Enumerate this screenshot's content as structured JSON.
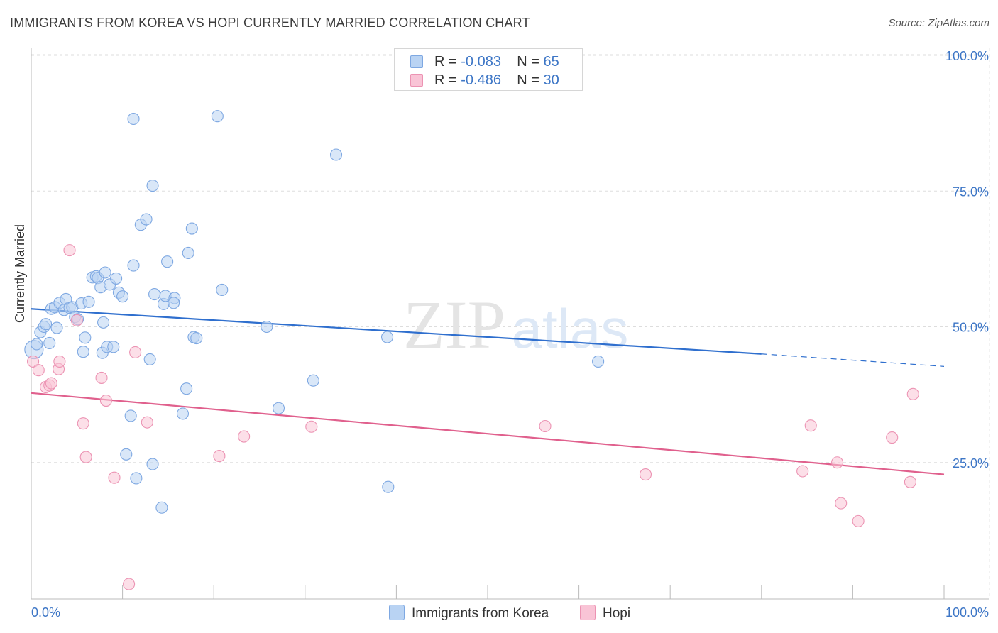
{
  "title": "IMMIGRANTS FROM KOREA VS HOPI CURRENTLY MARRIED CORRELATION CHART",
  "source": "Source: ZipAtlas.com",
  "watermark": {
    "zip": "ZIP",
    "atlas": "atlas"
  },
  "legend": {
    "r_label": "R =",
    "n_label": "N =",
    "series": [
      {
        "name": "Immigrants from Korea",
        "r": "-0.083",
        "n": "65",
        "fill": "#b9d3f3",
        "stroke": "#7ea8e2"
      },
      {
        "name": "Hopi",
        "r": "-0.486",
        "n": "30",
        "fill": "#f9c4d6",
        "stroke": "#ec93b3"
      }
    ]
  },
  "colors": {
    "blue_line": "#2f6fce",
    "pink_line": "#e0608d",
    "axis_text": "#3d76c6",
    "grid": "#dddddd"
  },
  "chart_data": {
    "type": "scatter",
    "title": "IMMIGRANTS FROM KOREA VS HOPI CURRENTLY MARRIED CORRELATION CHART",
    "xlabel": "",
    "ylabel": "Currently Married",
    "xlim": [
      0,
      100
    ],
    "ylim": [
      0,
      102
    ],
    "x_tick_labels": [
      "0.0%",
      "100.0%"
    ],
    "y_ticks": [
      25,
      50,
      75,
      100
    ],
    "y_tick_labels": [
      "25.0%",
      "50.0%",
      "75.0%",
      "100.0%"
    ],
    "legend_position": "top-center",
    "series": [
      {
        "name": "Immigrants from Korea",
        "points": [
          [
            0.3,
            45.8
          ],
          [
            0.6,
            46.8
          ],
          [
            1.0,
            49.0
          ],
          [
            1.4,
            50.0
          ],
          [
            1.6,
            50.5
          ],
          [
            2.0,
            47.0
          ],
          [
            2.2,
            53.3
          ],
          [
            2.6,
            53.6
          ],
          [
            2.8,
            49.8
          ],
          [
            3.1,
            54.4
          ],
          [
            3.6,
            53.1
          ],
          [
            3.8,
            55.1
          ],
          [
            4.2,
            53.5
          ],
          [
            4.5,
            53.6
          ],
          [
            4.8,
            51.8
          ],
          [
            5.1,
            51.4
          ],
          [
            5.5,
            54.3
          ],
          [
            5.7,
            45.4
          ],
          [
            5.9,
            48.0
          ],
          [
            6.3,
            54.6
          ],
          [
            6.7,
            59.1
          ],
          [
            7.1,
            59.3
          ],
          [
            7.3,
            59.0
          ],
          [
            7.6,
            57.3
          ],
          [
            7.8,
            45.2
          ],
          [
            7.9,
            50.8
          ],
          [
            8.1,
            60.0
          ],
          [
            8.3,
            46.3
          ],
          [
            8.6,
            57.8
          ],
          [
            9.0,
            46.3
          ],
          [
            9.3,
            58.9
          ],
          [
            9.6,
            56.3
          ],
          [
            10.0,
            55.6
          ],
          [
            10.4,
            26.5
          ],
          [
            11.2,
            88.3
          ],
          [
            11.5,
            22.1
          ],
          [
            11.2,
            61.3
          ],
          [
            10.9,
            33.6
          ],
          [
            12.0,
            68.8
          ],
          [
            13.3,
            76.0
          ],
          [
            12.6,
            69.8
          ],
          [
            13.0,
            44.0
          ],
          [
            13.5,
            56.0
          ],
          [
            14.5,
            54.2
          ],
          [
            14.7,
            55.7
          ],
          [
            15.7,
            55.3
          ],
          [
            15.6,
            54.4
          ],
          [
            14.9,
            62.0
          ],
          [
            14.3,
            16.7
          ],
          [
            13.3,
            24.7
          ],
          [
            16.6,
            34.0
          ],
          [
            17.0,
            38.6
          ],
          [
            17.2,
            63.6
          ],
          [
            17.6,
            68.1
          ],
          [
            17.8,
            48.1
          ],
          [
            18.1,
            47.9
          ],
          [
            20.4,
            88.8
          ],
          [
            20.9,
            56.8
          ],
          [
            25.8,
            50.0
          ],
          [
            27.1,
            35.0
          ],
          [
            30.9,
            40.1
          ],
          [
            33.4,
            81.7
          ],
          [
            39.0,
            48.1
          ],
          [
            39.1,
            20.5
          ],
          [
            62.1,
            43.6
          ]
        ]
      },
      {
        "name": "Hopi",
        "points": [
          [
            0.2,
            43.6
          ],
          [
            0.8,
            42.0
          ],
          [
            1.6,
            38.9
          ],
          [
            2.0,
            39.2
          ],
          [
            2.2,
            39.6
          ],
          [
            3.0,
            42.2
          ],
          [
            3.1,
            43.6
          ],
          [
            4.2,
            64.1
          ],
          [
            5.0,
            51.2
          ],
          [
            5.7,
            32.2
          ],
          [
            6.0,
            26.0
          ],
          [
            7.7,
            40.6
          ],
          [
            8.2,
            36.4
          ],
          [
            9.1,
            22.2
          ],
          [
            10.7,
            2.6
          ],
          [
            11.4,
            45.3
          ],
          [
            12.7,
            32.4
          ],
          [
            20.6,
            26.2
          ],
          [
            23.3,
            29.8
          ],
          [
            30.7,
            31.6
          ],
          [
            56.3,
            31.7
          ],
          [
            67.3,
            22.8
          ],
          [
            84.5,
            23.4
          ],
          [
            85.4,
            31.8
          ],
          [
            88.3,
            25.0
          ],
          [
            88.7,
            17.5
          ],
          [
            90.6,
            14.2
          ],
          [
            94.3,
            29.6
          ],
          [
            96.3,
            21.4
          ],
          [
            96.6,
            37.6
          ]
        ]
      }
    ],
    "trend_lines": [
      {
        "name": "Immigrants from Korea",
        "x0": 0,
        "y0": 53.3,
        "x1": 80,
        "y1": 45.0,
        "dash_from": 80,
        "dash_to": 100,
        "dash_y_end": 42.7
      },
      {
        "name": "Hopi",
        "x0": 0,
        "y0": 37.8,
        "x1": 100,
        "y1": 22.8
      }
    ]
  }
}
